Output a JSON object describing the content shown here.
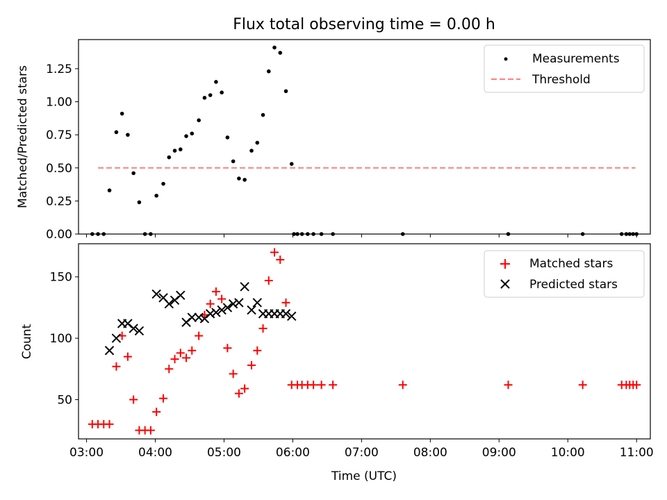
{
  "chart_data": [
    {
      "type": "scatter",
      "title": "Flux total observing time = 0.00 h",
      "xlabel": "",
      "ylabel": "Matched/Predicted stars",
      "xlim": [
        "02:53",
        "11:12"
      ],
      "ylim": [
        0,
        1.47
      ],
      "x_tick_labels": [
        "03:00",
        "04:00",
        "05:00",
        "06:00",
        "07:00",
        "08:00",
        "09:00",
        "10:00",
        "11:00"
      ],
      "y_ticks": [
        0.0,
        0.25,
        0.5,
        0.75,
        1.0,
        1.25
      ],
      "y_tick_labels": [
        "0.00",
        "0.25",
        "0.50",
        "0.75",
        "1.00",
        "1.25"
      ],
      "legend_position": "top-right",
      "legend": [
        "Measurements",
        "Threshold"
      ],
      "series": [
        {
          "name": "Measurements",
          "marker": "dot",
          "color": "#000000",
          "x": [
            "03:05",
            "03:10",
            "03:15",
            "03:20",
            "03:26",
            "03:31",
            "03:36",
            "03:41",
            "03:46",
            "03:51",
            "03:56",
            "04:01",
            "04:07",
            "04:12",
            "04:17",
            "04:22",
            "04:27",
            "04:32",
            "04:38",
            "04:43",
            "04:48",
            "04:53",
            "04:58",
            "05:03",
            "05:08",
            "05:13",
            "05:18",
            "05:24",
            "05:29",
            "05:34",
            "05:39",
            "05:44",
            "05:49",
            "05:54",
            "05:59",
            "06:01",
            "06:04",
            "06:08",
            "06:13",
            "06:18",
            "06:25",
            "06:35",
            "07:36",
            "09:08",
            "10:13",
            "10:47",
            "10:51",
            "10:54",
            "10:57",
            "11:00"
          ],
          "y": [
            0.0,
            0.0,
            0.0,
            0.33,
            0.77,
            0.91,
            0.75,
            0.46,
            0.24,
            0.0,
            0.0,
            0.29,
            0.38,
            0.58,
            0.63,
            0.64,
            0.74,
            0.76,
            0.86,
            1.03,
            1.05,
            1.15,
            1.07,
            0.73,
            0.55,
            0.42,
            0.41,
            0.63,
            0.69,
            0.9,
            1.23,
            1.41,
            1.37,
            1.08,
            0.53,
            0.0,
            0.0,
            0.0,
            0.0,
            0.0,
            0.0,
            0.0,
            0.0,
            0.0,
            0.0,
            0.0,
            0.0,
            0.0,
            0.0,
            0.0
          ]
        },
        {
          "name": "Threshold",
          "style": "dashed",
          "color": "#ff7f7f",
          "x": [
            "03:10",
            "10:59"
          ],
          "y": [
            0.5,
            0.5
          ]
        }
      ]
    },
    {
      "type": "scatter",
      "title": "",
      "xlabel": "Time (UTC)",
      "ylabel": "Count",
      "xlim": [
        "02:53",
        "11:12"
      ],
      "ylim": [
        18,
        177
      ],
      "x_tick_labels": [
        "03:00",
        "04:00",
        "05:00",
        "06:00",
        "07:00",
        "08:00",
        "09:00",
        "10:00",
        "11:00"
      ],
      "y_ticks": [
        50,
        100,
        150
      ],
      "y_tick_labels": [
        "50",
        "100",
        "150"
      ],
      "legend_position": "top-right",
      "legend": [
        "Matched stars",
        "Predicted stars"
      ],
      "series": [
        {
          "name": "Matched stars",
          "marker": "plus",
          "color": "#ff0000",
          "x": [
            "03:05",
            "03:10",
            "03:15",
            "03:20",
            "03:26",
            "03:31",
            "03:36",
            "03:41",
            "03:46",
            "03:51",
            "03:56",
            "04:01",
            "04:07",
            "04:12",
            "04:17",
            "04:22",
            "04:27",
            "04:32",
            "04:38",
            "04:43",
            "04:48",
            "04:53",
            "04:58",
            "05:03",
            "05:08",
            "05:13",
            "05:18",
            "05:24",
            "05:29",
            "05:34",
            "05:39",
            "05:44",
            "05:49",
            "05:54",
            "05:59",
            "06:04",
            "06:08",
            "06:13",
            "06:18",
            "06:25",
            "06:35",
            "07:36",
            "09:08",
            "10:13",
            "10:47",
            "10:51",
            "10:54",
            "10:57",
            "11:00"
          ],
          "y": [
            30,
            30,
            30,
            30,
            77,
            102,
            85,
            50,
            25,
            25,
            25,
            40,
            51,
            75,
            83,
            88,
            84,
            90,
            102,
            119,
            128,
            138,
            132,
            92,
            71,
            55,
            59,
            78,
            90,
            108,
            147,
            170,
            164,
            129,
            62,
            62,
            62,
            62,
            62,
            62,
            62,
            62,
            62,
            62,
            62,
            62,
            62,
            62,
            62
          ]
        },
        {
          "name": "Predicted stars",
          "marker": "x",
          "color": "#000000",
          "x": [
            "03:20",
            "03:26",
            "03:31",
            "03:36",
            "03:41",
            "03:46",
            "04:01",
            "04:07",
            "04:12",
            "04:17",
            "04:22",
            "04:27",
            "04:32",
            "04:38",
            "04:43",
            "04:48",
            "04:53",
            "04:58",
            "05:03",
            "05:08",
            "05:13",
            "05:18",
            "05:24",
            "05:29",
            "05:34",
            "05:39",
            "05:44",
            "05:49",
            "05:54",
            "05:59"
          ],
          "y": [
            90,
            100,
            112,
            112,
            108,
            106,
            136,
            133,
            128,
            131,
            135,
            113,
            117,
            117,
            116,
            120,
            121,
            123,
            125,
            128,
            129,
            142,
            123,
            129,
            120,
            120,
            120,
            120,
            120,
            118
          ]
        }
      ]
    }
  ]
}
